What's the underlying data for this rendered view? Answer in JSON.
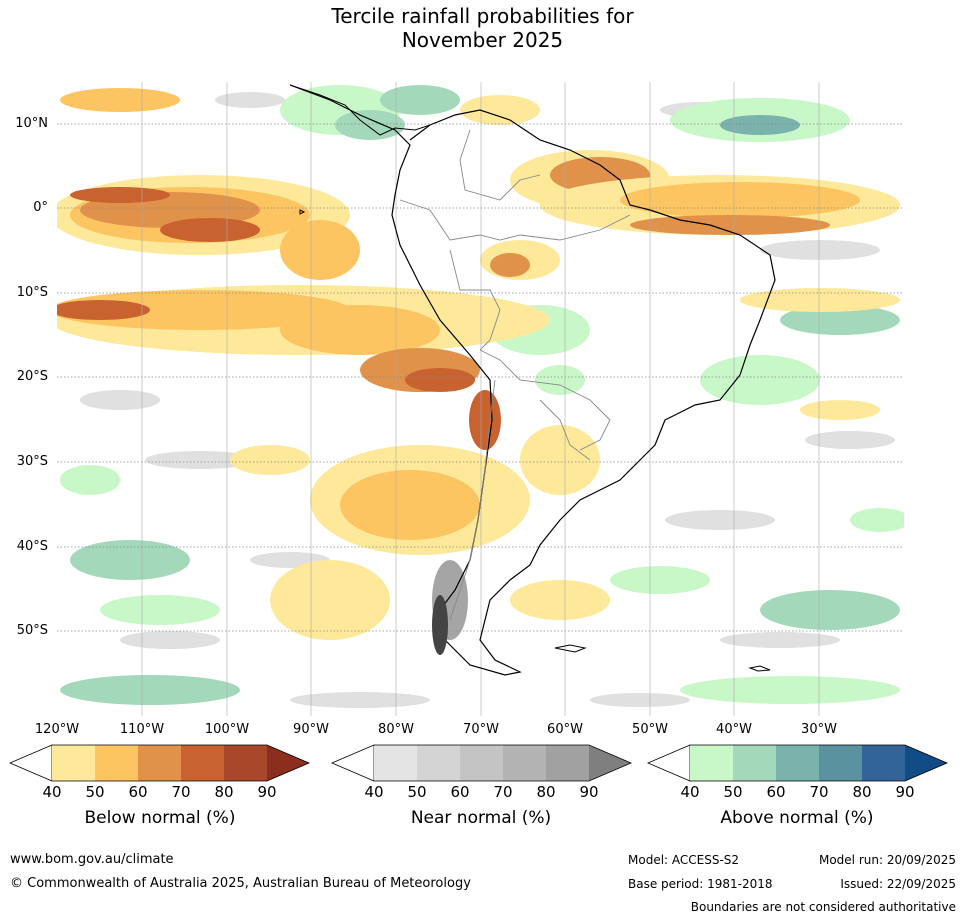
{
  "title": {
    "line1": "Tercile rainfall probabilities for",
    "line2": "November 2025"
  },
  "map": {
    "region": "South America",
    "lat_labels": [
      "10°N",
      "0°",
      "10°S",
      "20°S",
      "30°S",
      "40°S",
      "50°S"
    ],
    "lon_labels": [
      "120°W",
      "110°W",
      "100°W",
      "90°W",
      "80°W",
      "70°W",
      "60°W",
      "50°W",
      "40°W",
      "30°W"
    ]
  },
  "colorbars": [
    {
      "title": "Below normal (%)",
      "ticks": [
        "40",
        "50",
        "60",
        "70",
        "80",
        "90"
      ],
      "colors": [
        "#ffffff",
        "#fee99a",
        "#fdc561",
        "#e0914a",
        "#c8622f",
        "#a8472a",
        "#8b2e1e"
      ]
    },
    {
      "title": "Near normal (%)",
      "ticks": [
        "40",
        "50",
        "60",
        "70",
        "80",
        "90"
      ],
      "colors": [
        "#ffffff",
        "#e4e4e4",
        "#d4d4d4",
        "#c4c4c4",
        "#b3b3b3",
        "#a1a1a1",
        "#7f7f7f"
      ]
    },
    {
      "title": "Above normal (%)",
      "ticks": [
        "40",
        "50",
        "60",
        "70",
        "80",
        "90"
      ],
      "colors": [
        "#ffffff",
        "#c8f7c8",
        "#a3d8bb",
        "#7ab3ac",
        "#5a92a0",
        "#32649a",
        "#124c86"
      ]
    }
  ],
  "footer": {
    "website": "www.bom.gov.au/climate",
    "copyright": "© Commonwealth of Australia 2025, Australian Bureau of Meteorology",
    "model": "Model: ACCESS-S2",
    "model_run": "Model run: 20/09/2025",
    "base_period": "Base period: 1981-2018",
    "issued": "Issued: 22/09/2025",
    "disclaimer": "Boundaries are not considered authoritative"
  }
}
